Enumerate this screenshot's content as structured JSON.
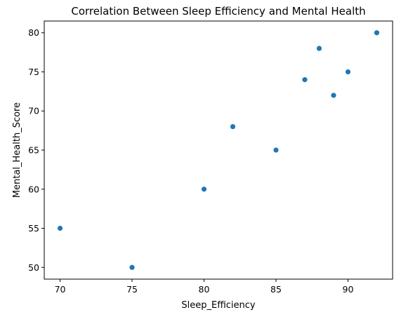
{
  "chart_data": {
    "type": "scatter",
    "title": "Correlation Between Sleep Efficiency and Mental Health",
    "xlabel": "Sleep_Efficiency",
    "ylabel": "Mental_Health_Score",
    "xlim": [
      68.9,
      93.1
    ],
    "ylim": [
      48.5,
      81.5
    ],
    "xticks": [
      70,
      75,
      80,
      85,
      90
    ],
    "yticks": [
      50,
      55,
      60,
      65,
      70,
      75,
      80
    ],
    "grid": false,
    "legend": "none",
    "point_color": "#1f77b4",
    "points": [
      {
        "x": 70,
        "y": 55
      },
      {
        "x": 75,
        "y": 50
      },
      {
        "x": 80,
        "y": 60
      },
      {
        "x": 82,
        "y": 68
      },
      {
        "x": 85,
        "y": 65
      },
      {
        "x": 87,
        "y": 74
      },
      {
        "x": 88,
        "y": 78
      },
      {
        "x": 89,
        "y": 72
      },
      {
        "x": 90,
        "y": 75
      },
      {
        "x": 92,
        "y": 80
      }
    ]
  }
}
